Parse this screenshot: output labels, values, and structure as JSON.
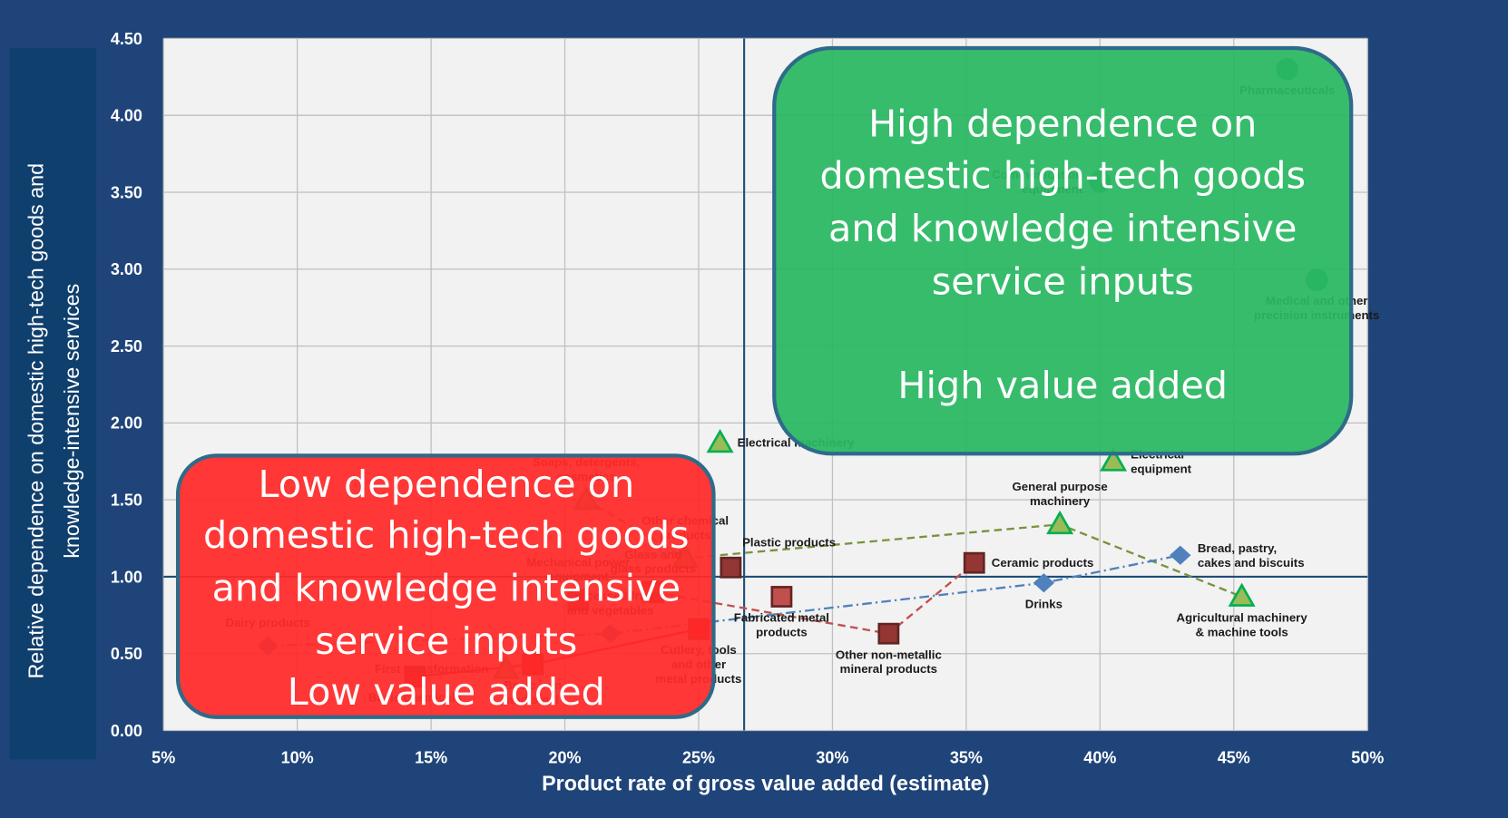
{
  "chart_data": {
    "type": "scatter",
    "x_label": "Product rate of gross value added (estimate)",
    "y_label": [
      "Relative dependence on domestic high-tech goods and",
      "knowledge-intensive services"
    ],
    "xlim": [
      5,
      50
    ],
    "ylim": [
      0,
      4.5
    ],
    "xticks": [
      {
        "value": 5,
        "label": "5%"
      },
      {
        "value": 10,
        "label": "10%"
      },
      {
        "value": 15,
        "label": "15%"
      },
      {
        "value": 20,
        "label": "20%"
      },
      {
        "value": 25,
        "label": "25%"
      },
      {
        "value": 30,
        "label": "30%"
      },
      {
        "value": 35,
        "label": "35%"
      },
      {
        "value": 40,
        "label": "40%"
      },
      {
        "value": 45,
        "label": "45%"
      },
      {
        "value": 50,
        "label": "50%"
      }
    ],
    "yticks": [
      {
        "value": 0,
        "label": "0.00"
      },
      {
        "value": 0.5,
        "label": "0.50"
      },
      {
        "value": 1,
        "label": "1.00"
      },
      {
        "value": 1.5,
        "label": "1.50"
      },
      {
        "value": 2,
        "label": "2.00"
      },
      {
        "value": 2.5,
        "label": "2.50"
      },
      {
        "value": 3,
        "label": "3.00"
      },
      {
        "value": 3.5,
        "label": "3.50"
      },
      {
        "value": 4,
        "label": "4.00"
      },
      {
        "value": 4.5,
        "label": "4.50"
      }
    ],
    "grid": true,
    "xref": 26.7,
    "yref": 1,
    "series": [
      {
        "marker": "circle",
        "color": "#1e9e50",
        "x": [
          47.0,
          40.0,
          48.1
        ],
        "values": [
          4.3,
          3.57,
          2.93
        ],
        "labels": [
          [
            "Pharmaceuticals"
          ],
          [
            "Communication",
            "equipment"
          ],
          [
            "Medical and other",
            "precision instruments"
          ]
        ]
      },
      {
        "marker": "triangle",
        "color": "#9bbb59",
        "line": "dashed",
        "line_color": "#77933c",
        "x": [
          20.8,
          24.5,
          38.5,
          45.3
        ],
        "values": [
          1.5,
          1.12,
          1.34,
          0.87
        ],
        "labels": [
          [
            "Soaps, detergents,",
            "cosmetics"
          ],
          [
            "Other chemical",
            "products"
          ],
          [
            "General purpose",
            "machinery"
          ],
          [
            "Agricultural machinery",
            "& machine tools"
          ]
        ]
      },
      {
        "marker": "triangle",
        "color": "#9bbb59",
        "x": [
          25.8,
          40.5,
          17.8
        ],
        "values": [
          1.87,
          1.75,
          0.4
        ],
        "labels": [
          [
            "Electrical machinery"
          ],
          [
            "Electrical",
            "equipment"
          ],
          [
            "First transformation"
          ]
        ]
      },
      {
        "marker": "square",
        "color": "#943634",
        "line": "dashed",
        "line_color": "#c0504d",
        "x": [
          23.3,
          32.1,
          35.3
        ],
        "values": [
          0.9,
          0.63,
          1.09
        ],
        "labels": [
          [
            "Glass and",
            "glass products"
          ],
          [
            "Other non-metallic",
            "mineral products"
          ],
          [
            "Ceramic products"
          ]
        ]
      },
      {
        "marker": "square",
        "color": "#943634",
        "x": [
          26.2,
          20.5
        ],
        "values": [
          1.06,
          0.85
        ],
        "labels": [
          [
            "Plastic products"
          ],
          [
            "Mechanical power",
            "equipment"
          ]
        ]
      },
      {
        "marker": "square",
        "color": "#ff0000",
        "line": "solid",
        "line_color": "#ff0000",
        "x": [
          14.4,
          18.8,
          25.0
        ],
        "values": [
          0.35,
          0.43,
          0.66
        ],
        "labels": [
          [
            "Basic chemicals"
          ],
          [
            "Basic iron",
            "and steel"
          ],
          [
            "Cutlery, tools",
            "and other",
            "metal products"
          ]
        ]
      },
      {
        "marker": "square",
        "color": "#c0504d",
        "x": [
          28.1
        ],
        "values": [
          0.87
        ],
        "labels": [
          [
            "Fabricated metal",
            "products"
          ]
        ]
      },
      {
        "marker": "diamond",
        "color": "#4f81bd",
        "line": "dashdot",
        "line_color": "#4f81bd",
        "x": [
          8.9,
          21.7,
          37.9,
          43.0
        ],
        "values": [
          0.55,
          0.63,
          0.96,
          1.14
        ],
        "labels": [
          [
            "Dairy products"
          ],
          [
            "Processed fruit",
            "and vegetables"
          ],
          [
            "Drinks"
          ],
          [
            "Bread, pastry,",
            "cakes and biscuits"
          ]
        ]
      }
    ],
    "annotations": [
      {
        "color": "#2ab863",
        "lines": [
          "High dependence on",
          "domestic high-tech goods",
          "and knowledge intensive",
          "service inputs",
          "High value added"
        ]
      },
      {
        "color": "#ff2a2a",
        "lines": [
          "Low dependence on",
          "domestic high-tech goods",
          "and knowledge intensive",
          "service inputs",
          "Low value added"
        ]
      }
    ]
  }
}
